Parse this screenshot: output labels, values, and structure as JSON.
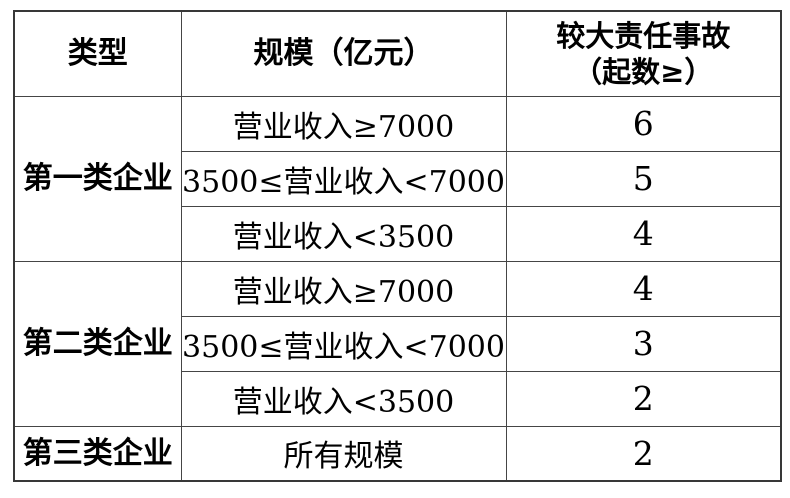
{
  "table": {
    "title_semantic": "enterprise-classification-accident-threshold-table",
    "colors": {
      "background": "#ffffff",
      "border": "#454545",
      "text": "#000000"
    },
    "header": {
      "type": "类型",
      "scale": "规模（亿元）",
      "accidents": "较大责任事故\n（起数≥）"
    },
    "groups": [
      {
        "type": "第一类企业",
        "rows": [
          {
            "scale": "营业收入≥7000",
            "value": "6"
          },
          {
            "scale": "3500≤营业收入<7000",
            "value": "5"
          },
          {
            "scale": "营业收入<3500",
            "value": "4"
          }
        ]
      },
      {
        "type": "第二类企业",
        "rows": [
          {
            "scale": "营业收入≥7000",
            "value": "4"
          },
          {
            "scale": "3500≤营业收入<7000",
            "value": "3"
          },
          {
            "scale": "营业收入<3500",
            "value": "2"
          }
        ]
      },
      {
        "type": "第三类企业",
        "rows": [
          {
            "scale": "所有规模",
            "value": "2"
          }
        ]
      }
    ]
  }
}
